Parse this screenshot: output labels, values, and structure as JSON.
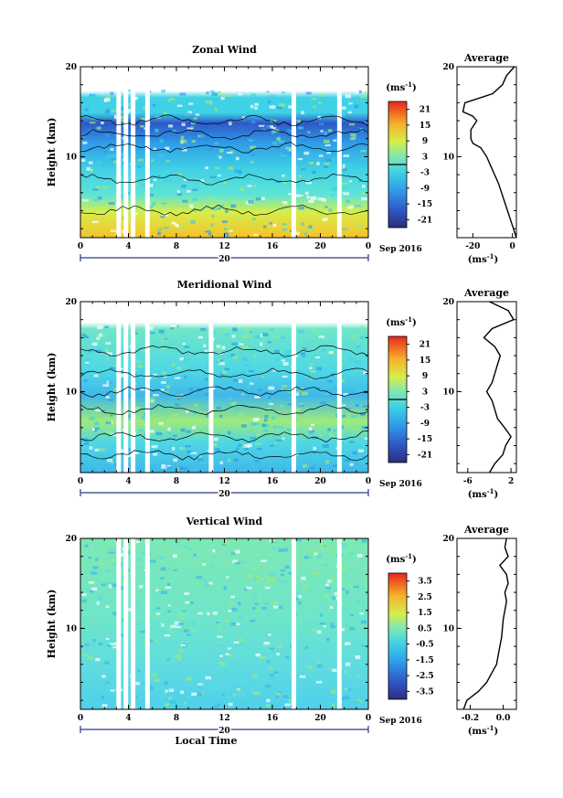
{
  "chart_data": [
    {
      "type": "heatmap",
      "title": "Zonal Wind",
      "ylabel": "Height (km)",
      "xlabel": "",
      "x_ticks": [
        "0",
        "4",
        "8",
        "12",
        "16",
        "20",
        "0"
      ],
      "y_ticks": [
        "10",
        "20"
      ],
      "xlim": [
        0,
        24
      ],
      "ylim": [
        1,
        20
      ],
      "date_labels": {
        "day": "20",
        "month_year": "Sep 2016"
      },
      "colorbar": {
        "unit_base": "(ms",
        "unit_exp": "-1",
        "unit_close": ")",
        "ticks": [
          "21",
          "15",
          "9",
          "3",
          "-3",
          "-9",
          "-15",
          "-21"
        ],
        "range": [
          -24,
          24
        ],
        "zero_line": 0
      },
      "gaps_hours": [
        3.0,
        3.6,
        4.2,
        5.4,
        17.6,
        21.4
      ],
      "average": {
        "title": "Average",
        "x_ticks": [
          "-20",
          "0"
        ],
        "xlim": [
          -28,
          2
        ],
        "xlabel_base": "(ms",
        "xlabel_exp": "-1",
        "xlabel_close": ")",
        "y_ticks": [
          "10",
          "20"
        ],
        "height_km": [
          1,
          2,
          3,
          4,
          5,
          6,
          7,
          8,
          9,
          10,
          11,
          11.5,
          12,
          13,
          14,
          14.5,
          15,
          16,
          17,
          18,
          19,
          20
        ],
        "values": [
          2,
          0.5,
          -1,
          -2.5,
          -4,
          -5.5,
          -7,
          -9,
          -11,
          -13,
          -16,
          -20,
          -21,
          -21,
          -18,
          -20,
          -25,
          -24,
          -10,
          -5,
          -3,
          1
        ]
      }
    },
    {
      "type": "heatmap",
      "title": "Meridional Wind",
      "ylabel": "Height (km)",
      "xlabel": "",
      "x_ticks": [
        "0",
        "4",
        "8",
        "12",
        "16",
        "20",
        "0"
      ],
      "y_ticks": [
        "10",
        "20"
      ],
      "xlim": [
        0,
        24
      ],
      "ylim": [
        1,
        20
      ],
      "date_labels": {
        "day": "20",
        "month_year": "Sep 2016"
      },
      "colorbar": {
        "unit_base": "(ms",
        "unit_exp": "-1",
        "unit_close": ")",
        "ticks": [
          "21",
          "15",
          "9",
          "3",
          "-3",
          "-9",
          "-15",
          "-21"
        ],
        "range": [
          -24,
          24
        ],
        "zero_line": 0
      },
      "gaps_hours": [
        3.0,
        3.6,
        4.2,
        5.4,
        10.7,
        17.6,
        21.4
      ],
      "average": {
        "title": "Average",
        "x_ticks": [
          "-6",
          "2"
        ],
        "xlim": [
          -8,
          3
        ],
        "xlabel_base": "(ms",
        "xlabel_exp": "-1",
        "xlabel_close": ")",
        "y_ticks": [
          "10",
          "20"
        ],
        "height_km": [
          1,
          2,
          3,
          4,
          5,
          6,
          7,
          8,
          9,
          10,
          11,
          12,
          13,
          14,
          15,
          16,
          17,
          18,
          19,
          20
        ],
        "values": [
          -2,
          -1,
          0.5,
          1,
          2,
          0.8,
          -0.5,
          -1,
          -1.5,
          -2.5,
          -1.5,
          -1,
          -0.5,
          0,
          -1,
          -3,
          -1.5,
          2.5,
          1.5,
          -2
        ]
      }
    },
    {
      "type": "heatmap",
      "title": "Vertical Wind",
      "ylabel": "Height (km)",
      "xlabel": "Local Time",
      "x_ticks": [
        "0",
        "4",
        "8",
        "12",
        "16",
        "20",
        "0"
      ],
      "y_ticks": [
        "10",
        "20"
      ],
      "xlim": [
        0,
        24
      ],
      "ylim": [
        1,
        20
      ],
      "date_labels": {
        "day": "20",
        "month_year": "Sep 2016"
      },
      "colorbar": {
        "unit_base": "(ms",
        "unit_exp": "-1",
        "unit_close": ")",
        "ticks": [
          "3.5",
          "2.5",
          "1.5",
          "0.5",
          "-0.5",
          "-1.5",
          "-2.5",
          "-3.5"
        ],
        "range": [
          -4,
          4
        ],
        "zero_line": null
      },
      "gaps_hours": [
        3.0,
        3.6,
        4.2,
        5.4,
        17.6,
        21.4
      ],
      "average": {
        "title": "Average",
        "x_ticks": [
          "-0.2",
          "0.0"
        ],
        "xlim": [
          -0.28,
          0.08
        ],
        "xlabel_base": "(ms",
        "xlabel_exp": "-1",
        "xlabel_close": ")",
        "y_ticks": [
          "10",
          "20"
        ],
        "height_km": [
          1,
          2,
          3,
          4,
          5,
          6,
          7,
          8,
          9,
          10,
          11,
          12,
          13,
          14,
          15,
          16,
          17,
          18,
          19,
          20
        ],
        "values": [
          -0.24,
          -0.22,
          -0.15,
          -0.1,
          -0.07,
          -0.04,
          -0.03,
          -0.02,
          -0.01,
          -0.005,
          0.0,
          0.01,
          0.02,
          0.01,
          0.03,
          0.02,
          -0.02,
          0.03,
          0.01,
          0.02
        ]
      }
    }
  ]
}
